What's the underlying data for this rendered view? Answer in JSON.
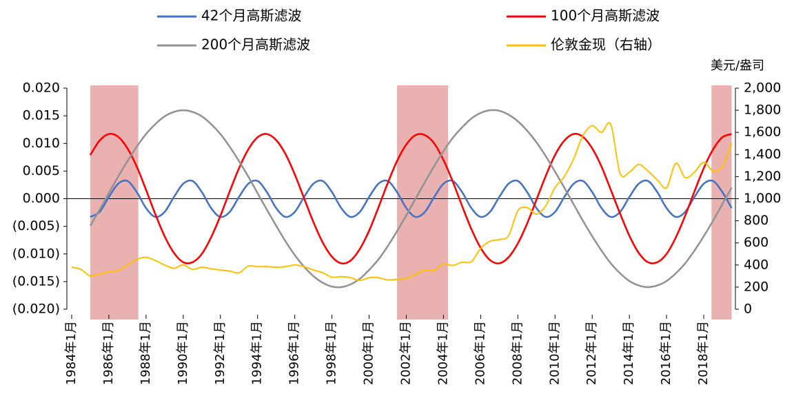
{
  "chart_data": {
    "type": "line",
    "unit_label": "美元/盎司",
    "x": [
      "1984-01",
      "1984-07",
      "1985-01",
      "1985-07",
      "1986-01",
      "1986-07",
      "1987-01",
      "1987-07",
      "1988-01",
      "1988-07",
      "1989-01",
      "1989-07",
      "1990-01",
      "1990-07",
      "1991-01",
      "1991-07",
      "1992-01",
      "1992-07",
      "1993-01",
      "1993-07",
      "1994-01",
      "1994-07",
      "1995-01",
      "1995-07",
      "1996-01",
      "1996-07",
      "1997-01",
      "1997-07",
      "1998-01",
      "1998-07",
      "1999-01",
      "1999-07",
      "2000-01",
      "2000-07",
      "2001-01",
      "2001-07",
      "2002-01",
      "2002-07",
      "2003-01",
      "2003-07",
      "2004-01",
      "2004-07",
      "2005-01",
      "2005-07",
      "2006-01",
      "2006-07",
      "2007-01",
      "2007-07",
      "2008-01",
      "2008-07",
      "2009-01",
      "2009-07",
      "2010-01",
      "2010-07",
      "2011-01",
      "2011-07",
      "2012-01",
      "2012-07",
      "2013-01",
      "2013-07",
      "2014-01",
      "2014-07",
      "2015-01",
      "2015-07",
      "2016-01",
      "2016-07",
      "2017-01",
      "2017-07",
      "2018-01",
      "2018-07",
      "2019-01",
      "2019-07"
    ],
    "xlim": [
      "1984-01",
      "2019-09"
    ],
    "xticks": [
      {
        "value": "1984-01",
        "label": "1984年1月"
      },
      {
        "value": "1986-01",
        "label": "1986年1月"
      },
      {
        "value": "1988-01",
        "label": "1988年1月"
      },
      {
        "value": "1990-01",
        "label": "1990年1月"
      },
      {
        "value": "1992-01",
        "label": "1992年1月"
      },
      {
        "value": "1994-01",
        "label": "1994年1月"
      },
      {
        "value": "1996-01",
        "label": "1996年1月"
      },
      {
        "value": "1998-01",
        "label": "1998年1月"
      },
      {
        "value": "2000-01",
        "label": "2000年1月"
      },
      {
        "value": "2002-01",
        "label": "2002年1月"
      },
      {
        "value": "2004-01",
        "label": "2004年1月"
      },
      {
        "value": "2006-01",
        "label": "2006年1月"
      },
      {
        "value": "2008-01",
        "label": "2008年1月"
      },
      {
        "value": "2010-01",
        "label": "2010年1月"
      },
      {
        "value": "2012-01",
        "label": "2012年1月"
      },
      {
        "value": "2014-01",
        "label": "2014年1月"
      },
      {
        "value": "2016-01",
        "label": "2016年1月"
      },
      {
        "value": "2018-01",
        "label": "2018年1月"
      }
    ],
    "ylim": [
      -0.02,
      0.02
    ],
    "yticks": [
      {
        "value": 0.02,
        "label": "0.020"
      },
      {
        "value": 0.015,
        "label": "0.015"
      },
      {
        "value": 0.01,
        "label": "0.010"
      },
      {
        "value": 0.005,
        "label": "0.005"
      },
      {
        "value": 0,
        "label": "0.000"
      },
      {
        "value": -0.005,
        "label": "(0.005)"
      },
      {
        "value": -0.01,
        "label": "(0.010)"
      },
      {
        "value": -0.015,
        "label": "(0.015)"
      },
      {
        "value": -0.02,
        "label": "(0.020)"
      }
    ],
    "y2lim": [
      0,
      2000
    ],
    "y2ticks": [
      {
        "value": 2000,
        "label": "2,000"
      },
      {
        "value": 1800,
        "label": "1,800"
      },
      {
        "value": 1600,
        "label": "1,600"
      },
      {
        "value": 1400,
        "label": "1,400"
      },
      {
        "value": 1200,
        "label": "1,200"
      },
      {
        "value": 1000,
        "label": "1,000"
      },
      800,
      600,
      400,
      200,
      0
    ],
    "shaded_periods": [
      [
        "1985-01",
        "1987-08"
      ],
      [
        "2001-07",
        "2004-04"
      ],
      [
        "2018-06",
        "2019-07"
      ]
    ],
    "shade_color": "#e6a3a3",
    "series": [
      {
        "name": "42个月高斯滤波",
        "color": "#4472c4",
        "values": [
          null,
          null,
          -0.0033,
          -0.0024,
          0.0003,
          0.0027,
          0.0032,
          0.0012,
          -0.0017,
          -0.0033,
          -0.0024,
          0.0003,
          0.0027,
          0.0032,
          0.0012,
          -0.0017,
          -0.0033,
          -0.0024,
          0.0003,
          0.0027,
          0.0032,
          0.0012,
          -0.0017,
          -0.0033,
          -0.0024,
          0.0003,
          0.0027,
          0.0032,
          0.0012,
          -0.0017,
          -0.0033,
          -0.0024,
          0.0003,
          0.0027,
          0.0032,
          0.0012,
          -0.0017,
          -0.0033,
          -0.0024,
          0.0003,
          0.0027,
          0.0032,
          0.0012,
          -0.0017,
          -0.0033,
          -0.0024,
          0.0003,
          0.0027,
          0.0032,
          0.0012,
          -0.0017,
          -0.0033,
          -0.0024,
          0.0003,
          0.0027,
          0.0032,
          0.0012,
          -0.0017,
          -0.0033,
          -0.0024,
          0.0003,
          0.0027,
          0.0032,
          0.0012,
          -0.0017,
          -0.0033,
          -0.0024,
          0.0003,
          0.0027,
          0.0032,
          0.0012,
          -0.0017
        ]
      },
      {
        "name": "100个月高斯滤波",
        "color": "#ff0000",
        "values": [
          null,
          null,
          0.0079,
          0.0105,
          0.0117,
          0.0112,
          0.0091,
          0.0058,
          0.0016,
          -0.0028,
          -0.0068,
          -0.0098,
          -0.0115,
          -0.0115,
          -0.01,
          -0.007,
          -0.0031,
          0.0013,
          0.0055,
          0.0089,
          0.0111,
          0.0117,
          0.0106,
          0.0081,
          0.0044,
          0.0001,
          -0.0042,
          -0.0079,
          -0.0105,
          -0.0117,
          -0.0112,
          -0.0091,
          -0.0058,
          -0.0016,
          0.0028,
          0.0068,
          0.0098,
          0.0115,
          0.0115,
          0.01,
          0.007,
          0.0031,
          -0.0013,
          -0.0055,
          -0.0089,
          -0.0111,
          -0.0117,
          -0.0106,
          -0.0081,
          -0.0045,
          -0.0002,
          0.0041,
          0.0079,
          0.0105,
          0.0117,
          0.0112,
          0.0091,
          0.0058,
          0.0016,
          -0.0027,
          -0.0067,
          -0.0098,
          -0.0115,
          -0.0115,
          -0.01,
          -0.007,
          -0.0031,
          0.0013,
          0.0055,
          0.0089,
          0.0111,
          0.0117
        ]
      },
      {
        "name": "200个月高斯滤波",
        "color": "#939393",
        "values": [
          null,
          null,
          -0.0049,
          -0.002,
          0.001,
          0.004,
          0.0068,
          0.0094,
          0.0117,
          0.0135,
          0.0149,
          0.0157,
          0.016,
          0.0157,
          0.0149,
          0.0135,
          0.0117,
          0.0094,
          0.0068,
          0.004,
          0.001,
          -0.002,
          -0.0049,
          -0.0077,
          -0.0102,
          -0.0123,
          -0.014,
          -0.0152,
          -0.0159,
          -0.016,
          -0.0155,
          -0.0145,
          -0.0129,
          -0.011,
          -0.0086,
          -0.0059,
          -0.003,
          0,
          0.003,
          0.0059,
          0.0086,
          0.011,
          0.0129,
          0.0145,
          0.0155,
          0.016,
          0.0159,
          0.0152,
          0.014,
          0.0123,
          0.0102,
          0.0077,
          0.0049,
          0.002,
          -0.001,
          -0.004,
          -0.0068,
          -0.0094,
          -0.0117,
          -0.0135,
          -0.0149,
          -0.0157,
          -0.016,
          -0.0157,
          -0.0149,
          -0.0135,
          -0.0117,
          -0.0094,
          -0.0068,
          -0.004,
          -0.001,
          0.002
        ]
      },
      {
        "name": "伦敦金现（右轴）",
        "color": "#ffc000",
        "axis": "y2",
        "values": [
          380,
          360,
          300,
          320,
          340,
          350,
          400,
          450,
          470,
          440,
          400,
          370,
          400,
          360,
          380,
          365,
          355,
          345,
          330,
          390,
          385,
          385,
          380,
          385,
          400,
          385,
          355,
          330,
          290,
          295,
          285,
          260,
          285,
          285,
          265,
          270,
          280,
          315,
          355,
          350,
          410,
          395,
          425,
          430,
          550,
          615,
          630,
          665,
          890,
          920,
          860,
          935,
          1100,
          1200,
          1360,
          1570,
          1660,
          1600,
          1670,
          1230,
          1240,
          1310,
          1250,
          1170,
          1100,
          1320,
          1190,
          1240,
          1330,
          1250,
          1290,
          1500
        ]
      }
    ]
  }
}
